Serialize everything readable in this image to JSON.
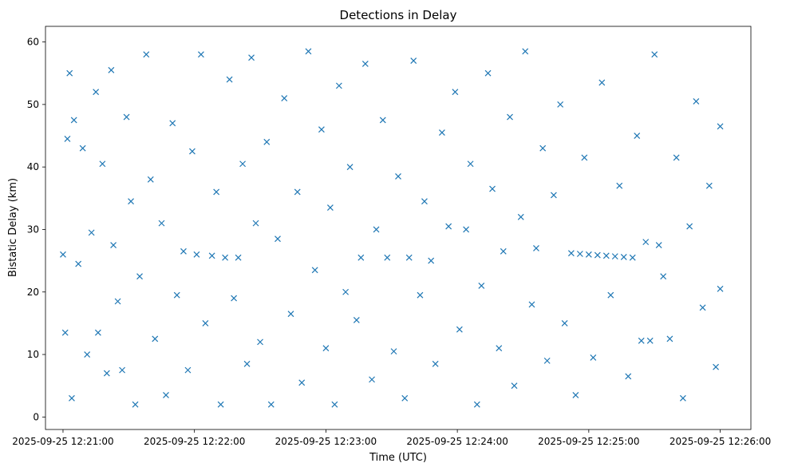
{
  "chart_data": {
    "type": "scatter",
    "title": "Detections in Delay",
    "xlabel": "Time (UTC)",
    "ylabel": "Bistatic Delay (km)",
    "xlim": [
      "2025-09-25 12:20:52",
      "2025-09-25 12:26:14"
    ],
    "ylim": [
      -2,
      62.5
    ],
    "x_ticks": [
      "2025-09-25 12:21:00",
      "2025-09-25 12:22:00",
      "2025-09-25 12:23:00",
      "2025-09-25 12:24:00",
      "2025-09-25 12:25:00",
      "2025-09-25 12:26:00"
    ],
    "y_ticks": [
      0,
      10,
      20,
      30,
      40,
      50,
      60
    ],
    "marker": "x",
    "marker_color": "#1f77b4",
    "grid": false,
    "series": [
      {
        "points": [
          [
            "2025-09-25 12:21:00",
            26.0
          ],
          [
            "2025-09-25 12:21:01",
            13.5
          ],
          [
            "2025-09-25 12:21:02",
            44.5
          ],
          [
            "2025-09-25 12:21:03",
            55.0
          ],
          [
            "2025-09-25 12:21:04",
            3.0
          ],
          [
            "2025-09-25 12:21:05",
            47.5
          ],
          [
            "2025-09-25 12:21:07",
            24.5
          ],
          [
            "2025-09-25 12:21:09",
            43.0
          ],
          [
            "2025-09-25 12:21:11",
            10.0
          ],
          [
            "2025-09-25 12:21:13",
            29.5
          ],
          [
            "2025-09-25 12:21:15",
            52.0
          ],
          [
            "2025-09-25 12:21:16",
            13.5
          ],
          [
            "2025-09-25 12:21:18",
            40.5
          ],
          [
            "2025-09-25 12:21:20",
            7.0
          ],
          [
            "2025-09-25 12:21:22",
            55.5
          ],
          [
            "2025-09-25 12:21:23",
            27.5
          ],
          [
            "2025-09-25 12:21:25",
            18.5
          ],
          [
            "2025-09-25 12:21:27",
            7.5
          ],
          [
            "2025-09-25 12:21:29",
            48.0
          ],
          [
            "2025-09-25 12:21:31",
            34.5
          ],
          [
            "2025-09-25 12:21:33",
            2.0
          ],
          [
            "2025-09-25 12:21:35",
            22.5
          ],
          [
            "2025-09-25 12:21:38",
            58.0
          ],
          [
            "2025-09-25 12:21:40",
            38.0
          ],
          [
            "2025-09-25 12:21:42",
            12.5
          ],
          [
            "2025-09-25 12:21:45",
            31.0
          ],
          [
            "2025-09-25 12:21:47",
            3.5
          ],
          [
            "2025-09-25 12:21:50",
            47.0
          ],
          [
            "2025-09-25 12:21:52",
            19.5
          ],
          [
            "2025-09-25 12:21:55",
            26.5
          ],
          [
            "2025-09-25 12:21:57",
            7.5
          ],
          [
            "2025-09-25 12:21:59",
            42.5
          ],
          [
            "2025-09-25 12:22:01",
            26.0
          ],
          [
            "2025-09-25 12:22:03",
            58.0
          ],
          [
            "2025-09-25 12:22:05",
            15.0
          ],
          [
            "2025-09-25 12:22:08",
            25.8
          ],
          [
            "2025-09-25 12:22:10",
            36.0
          ],
          [
            "2025-09-25 12:22:12",
            2.0
          ],
          [
            "2025-09-25 12:22:14",
            25.5
          ],
          [
            "2025-09-25 12:22:16",
            54.0
          ],
          [
            "2025-09-25 12:22:18",
            19.0
          ],
          [
            "2025-09-25 12:22:20",
            25.5
          ],
          [
            "2025-09-25 12:22:22",
            40.5
          ],
          [
            "2025-09-25 12:22:24",
            8.5
          ],
          [
            "2025-09-25 12:22:26",
            57.5
          ],
          [
            "2025-09-25 12:22:28",
            31.0
          ],
          [
            "2025-09-25 12:22:30",
            12.0
          ],
          [
            "2025-09-25 12:22:33",
            44.0
          ],
          [
            "2025-09-25 12:22:35",
            2.0
          ],
          [
            "2025-09-25 12:22:38",
            28.5
          ],
          [
            "2025-09-25 12:22:41",
            51.0
          ],
          [
            "2025-09-25 12:22:44",
            16.5
          ],
          [
            "2025-09-25 12:22:47",
            36.0
          ],
          [
            "2025-09-25 12:22:49",
            5.5
          ],
          [
            "2025-09-25 12:22:52",
            58.5
          ],
          [
            "2025-09-25 12:22:55",
            23.5
          ],
          [
            "2025-09-25 12:22:58",
            46.0
          ],
          [
            "2025-09-25 12:23:00",
            11.0
          ],
          [
            "2025-09-25 12:23:02",
            33.5
          ],
          [
            "2025-09-25 12:23:04",
            2.0
          ],
          [
            "2025-09-25 12:23:06",
            53.0
          ],
          [
            "2025-09-25 12:23:09",
            20.0
          ],
          [
            "2025-09-25 12:23:11",
            40.0
          ],
          [
            "2025-09-25 12:23:14",
            15.5
          ],
          [
            "2025-09-25 12:23:16",
            25.5
          ],
          [
            "2025-09-25 12:23:18",
            56.5
          ],
          [
            "2025-09-25 12:23:21",
            6.0
          ],
          [
            "2025-09-25 12:23:23",
            30.0
          ],
          [
            "2025-09-25 12:23:26",
            47.5
          ],
          [
            "2025-09-25 12:23:28",
            25.5
          ],
          [
            "2025-09-25 12:23:31",
            10.5
          ],
          [
            "2025-09-25 12:23:33",
            38.5
          ],
          [
            "2025-09-25 12:23:36",
            3.0
          ],
          [
            "2025-09-25 12:23:38",
            25.5
          ],
          [
            "2025-09-25 12:23:40",
            57.0
          ],
          [
            "2025-09-25 12:23:43",
            19.5
          ],
          [
            "2025-09-25 12:23:45",
            34.5
          ],
          [
            "2025-09-25 12:23:48",
            25.0
          ],
          [
            "2025-09-25 12:23:50",
            8.5
          ],
          [
            "2025-09-25 12:23:53",
            45.5
          ],
          [
            "2025-09-25 12:23:56",
            30.5
          ],
          [
            "2025-09-25 12:23:59",
            52.0
          ],
          [
            "2025-09-25 12:24:01",
            14.0
          ],
          [
            "2025-09-25 12:24:04",
            30.0
          ],
          [
            "2025-09-25 12:24:06",
            40.5
          ],
          [
            "2025-09-25 12:24:09",
            2.0
          ],
          [
            "2025-09-25 12:24:11",
            21.0
          ],
          [
            "2025-09-25 12:24:14",
            55.0
          ],
          [
            "2025-09-25 12:24:16",
            36.5
          ],
          [
            "2025-09-25 12:24:19",
            11.0
          ],
          [
            "2025-09-25 12:24:21",
            26.5
          ],
          [
            "2025-09-25 12:24:24",
            48.0
          ],
          [
            "2025-09-25 12:24:26",
            5.0
          ],
          [
            "2025-09-25 12:24:29",
            32.0
          ],
          [
            "2025-09-25 12:24:31",
            58.5
          ],
          [
            "2025-09-25 12:24:34",
            18.0
          ],
          [
            "2025-09-25 12:24:36",
            27.0
          ],
          [
            "2025-09-25 12:24:39",
            43.0
          ],
          [
            "2025-09-25 12:24:41",
            9.0
          ],
          [
            "2025-09-25 12:24:44",
            35.5
          ],
          [
            "2025-09-25 12:24:47",
            50.0
          ],
          [
            "2025-09-25 12:24:49",
            15.0
          ],
          [
            "2025-09-25 12:24:52",
            26.2
          ],
          [
            "2025-09-25 12:24:54",
            3.5
          ],
          [
            "2025-09-25 12:24:56",
            26.1
          ],
          [
            "2025-09-25 12:24:58",
            41.5
          ],
          [
            "2025-09-25 12:25:00",
            26.0
          ],
          [
            "2025-09-25 12:25:02",
            9.5
          ],
          [
            "2025-09-25 12:25:04",
            25.9
          ],
          [
            "2025-09-25 12:25:06",
            53.5
          ],
          [
            "2025-09-25 12:25:08",
            25.8
          ],
          [
            "2025-09-25 12:25:10",
            19.5
          ],
          [
            "2025-09-25 12:25:12",
            25.7
          ],
          [
            "2025-09-25 12:25:14",
            37.0
          ],
          [
            "2025-09-25 12:25:16",
            25.6
          ],
          [
            "2025-09-25 12:25:18",
            6.5
          ],
          [
            "2025-09-25 12:25:20",
            25.5
          ],
          [
            "2025-09-25 12:25:22",
            45.0
          ],
          [
            "2025-09-25 12:25:24",
            12.2
          ],
          [
            "2025-09-25 12:25:26",
            28.0
          ],
          [
            "2025-09-25 12:25:28",
            12.2
          ],
          [
            "2025-09-25 12:25:30",
            58.0
          ],
          [
            "2025-09-25 12:25:32",
            27.5
          ],
          [
            "2025-09-25 12:25:34",
            22.5
          ],
          [
            "2025-09-25 12:25:37",
            12.5
          ],
          [
            "2025-09-25 12:25:40",
            41.5
          ],
          [
            "2025-09-25 12:25:43",
            3.0
          ],
          [
            "2025-09-25 12:25:46",
            30.5
          ],
          [
            "2025-09-25 12:25:49",
            50.5
          ],
          [
            "2025-09-25 12:25:52",
            17.5
          ],
          [
            "2025-09-25 12:25:55",
            37.0
          ],
          [
            "2025-09-25 12:25:58",
            8.0
          ],
          [
            "2025-09-25 12:26:00",
            46.5
          ],
          [
            "2025-09-25 12:26:00",
            20.5
          ]
        ]
      }
    ]
  }
}
